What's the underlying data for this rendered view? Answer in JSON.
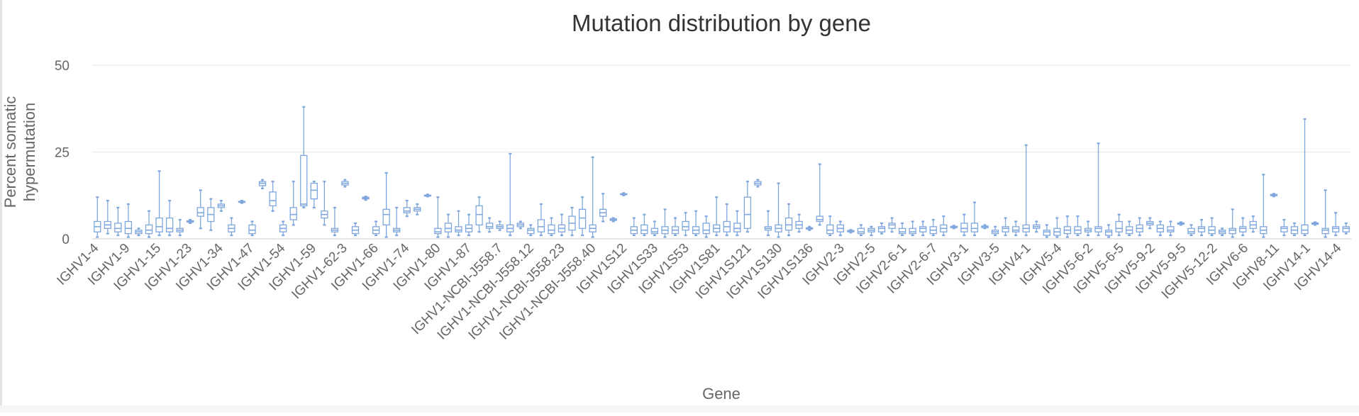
{
  "chart_data": {
    "type": "boxplot",
    "title": "Mutation distribution by gene",
    "xlabel": "Gene",
    "ylabel": "Percent somatic hypermutation",
    "ylabel_lines": [
      "Percent somatic",
      "hypermutation"
    ],
    "ylim": [
      0,
      50
    ],
    "yticks": [
      0,
      25,
      50
    ],
    "grid": true,
    "legend": "none",
    "box_color": "#7fa7de",
    "x_tick_labels_shown": [
      "IGHV1-4",
      "IGHV1-9",
      "IGHV1-15",
      "IGHV1-23",
      "IGHV1-34",
      "IGHV1-47",
      "IGHV1-54",
      "IGHV1-59",
      "IGHV1-62-3",
      "IGHV1-66",
      "IGHV1-74",
      "IGHV1-80",
      "IGHV1-87",
      "IGHV1-NCBI-J558.7",
      "IGHV1-NCBI-J558.12",
      "IGHV1-NCBI-J558.23",
      "IGHV1-NCBI-J558.40",
      "IGHV1S12",
      "IGHV1S33",
      "IGHV1S53",
      "IGHV1S81",
      "IGHV1S121",
      "IGHV1S130",
      "IGHV1S136",
      "IGHV2-3",
      "IGHV2-5",
      "IGHV2-6-1",
      "IGHV2-6-7",
      "IGHV3-1",
      "IGHV3-5",
      "IGHV4-1",
      "IGHV5-4",
      "IGHV5-6-2",
      "IGHV5-6-5",
      "IGHV5-9-2",
      "IGHV5-9-5",
      "IGHV5-12-2",
      "IGHV6-6",
      "IGHV8-11",
      "IGHV14-1",
      "IGHV14-4"
    ],
    "boxes": [
      {
        "min": 0.5,
        "q1": 2,
        "median": 3.5,
        "q3": 5,
        "max": 12
      },
      {
        "min": 1.5,
        "q1": 3,
        "median": 4,
        "q3": 5,
        "max": 11
      },
      {
        "min": 1,
        "q1": 2,
        "median": 3,
        "q3": 4.5,
        "max": 9
      },
      {
        "min": 0.5,
        "q1": 1.5,
        "median": 3,
        "q3": 5,
        "max": 10
      },
      {
        "min": 1,
        "q1": 1.5,
        "median": 2,
        "q3": 2.5,
        "max": 3
      },
      {
        "min": 0.5,
        "q1": 1.5,
        "median": 2.5,
        "q3": 4,
        "max": 8
      },
      {
        "min": 1,
        "q1": 2,
        "median": 3.5,
        "q3": 6,
        "max": 19.5
      },
      {
        "min": 1,
        "q1": 2,
        "median": 3,
        "q3": 6,
        "max": 11
      },
      {
        "min": 1,
        "q1": 2,
        "median": 2.5,
        "q3": 3,
        "max": 5.5
      },
      {
        "min": 4.5,
        "q1": 4.8,
        "median": 5,
        "q3": 5.2,
        "max": 5.5
      },
      {
        "min": 3,
        "q1": 6.5,
        "median": 7.5,
        "q3": 9,
        "max": 14
      },
      {
        "min": 2.5,
        "q1": 5,
        "median": 7,
        "q3": 9,
        "max": 11.5
      },
      {
        "min": 8,
        "q1": 9,
        "median": 9.5,
        "q3": 10,
        "max": 11
      },
      {
        "min": 1,
        "q1": 2,
        "median": 3,
        "q3": 4,
        "max": 6
      },
      {
        "min": 10.3,
        "q1": 10.5,
        "median": 10.7,
        "q3": 10.8,
        "max": 11
      },
      {
        "min": 1,
        "q1": 1.5,
        "median": 2.5,
        "q3": 4,
        "max": 5
      },
      {
        "min": 14.5,
        "q1": 15.3,
        "median": 16,
        "q3": 16.5,
        "max": 17
      },
      {
        "min": 8,
        "q1": 9.5,
        "median": 11,
        "q3": 13.5,
        "max": 16.5
      },
      {
        "min": 1,
        "q1": 2,
        "median": 3,
        "q3": 4,
        "max": 5
      },
      {
        "min": 4,
        "q1": 5.5,
        "median": 7,
        "q3": 9,
        "max": 16.5
      },
      {
        "min": 9,
        "q1": 9.5,
        "median": 10,
        "q3": 24,
        "max": 38
      },
      {
        "min": 9,
        "q1": 11.5,
        "median": 14,
        "q3": 16,
        "max": 16.5
      },
      {
        "min": 4,
        "q1": 6,
        "median": 7,
        "q3": 8,
        "max": 16.5
      },
      {
        "min": 1,
        "q1": 2,
        "median": 2.5,
        "q3": 3,
        "max": 9
      },
      {
        "min": 15,
        "q1": 15.5,
        "median": 16,
        "q3": 16.5,
        "max": 17
      },
      {
        "min": 1,
        "q1": 1.5,
        "median": 2.5,
        "q3": 3.5,
        "max": 4.5
      },
      {
        "min": 11.2,
        "q1": 11.5,
        "median": 11.8,
        "q3": 12,
        "max": 12.2
      },
      {
        "min": 1,
        "q1": 1.5,
        "median": 2.5,
        "q3": 3.5,
        "max": 5
      },
      {
        "min": 0.5,
        "q1": 4,
        "median": 7,
        "q3": 8.5,
        "max": 19
      },
      {
        "min": 1,
        "q1": 2,
        "median": 2.5,
        "q3": 3,
        "max": 9
      },
      {
        "min": 6.5,
        "q1": 7.5,
        "median": 8,
        "q3": 9,
        "max": 11
      },
      {
        "min": 7,
        "q1": 8,
        "median": 8.5,
        "q3": 9,
        "max": 10
      },
      {
        "min": 12.2,
        "q1": 12.4,
        "median": 12.5,
        "q3": 12.6,
        "max": 12.8
      },
      {
        "min": 0.5,
        "q1": 1.5,
        "median": 2,
        "q3": 3,
        "max": 12
      },
      {
        "min": 0.5,
        "q1": 2,
        "median": 3,
        "q3": 4.5,
        "max": 7
      },
      {
        "min": 1,
        "q1": 2,
        "median": 2.5,
        "q3": 3.5,
        "max": 8
      },
      {
        "min": 1,
        "q1": 2,
        "median": 3,
        "q3": 4,
        "max": 7
      },
      {
        "min": 2,
        "q1": 4,
        "median": 7,
        "q3": 9.5,
        "max": 12
      },
      {
        "min": 2,
        "q1": 3,
        "median": 3.5,
        "q3": 4.5,
        "max": 6
      },
      {
        "min": 2.5,
        "q1": 3,
        "median": 3.5,
        "q3": 4,
        "max": 5
      },
      {
        "min": 1,
        "q1": 2,
        "median": 3,
        "q3": 4,
        "max": 24.5
      },
      {
        "min": 3,
        "q1": 3.5,
        "median": 4,
        "q3": 4.5,
        "max": 5
      },
      {
        "min": 1,
        "q1": 1.5,
        "median": 2.5,
        "q3": 3,
        "max": 4
      },
      {
        "min": 1,
        "q1": 2,
        "median": 3.5,
        "q3": 5.5,
        "max": 10
      },
      {
        "min": 1,
        "q1": 1.5,
        "median": 2.5,
        "q3": 4,
        "max": 6
      },
      {
        "min": 1,
        "q1": 2,
        "median": 3,
        "q3": 4,
        "max": 7
      },
      {
        "min": 1,
        "q1": 2.5,
        "median": 4.5,
        "q3": 6.5,
        "max": 9
      },
      {
        "min": 1,
        "q1": 3,
        "median": 6,
        "q3": 8.5,
        "max": 12
      },
      {
        "min": 0.5,
        "q1": 2,
        "median": 3,
        "q3": 4,
        "max": 23.5
      },
      {
        "min": 5,
        "q1": 6.5,
        "median": 7.5,
        "q3": 8.5,
        "max": 13
      },
      {
        "min": 5,
        "q1": 5.3,
        "median": 5.5,
        "q3": 5.8,
        "max": 6
      },
      {
        "min": 12.5,
        "q1": 12.7,
        "median": 12.9,
        "q3": 13,
        "max": 13.2
      },
      {
        "min": 1,
        "q1": 1.5,
        "median": 2.5,
        "q3": 3.5,
        "max": 6
      },
      {
        "min": 1,
        "q1": 1.5,
        "median": 2.5,
        "q3": 4,
        "max": 7
      },
      {
        "min": 1,
        "q1": 1.5,
        "median": 2,
        "q3": 3,
        "max": 5
      },
      {
        "min": 0.5,
        "q1": 1.5,
        "median": 2.5,
        "q3": 3.5,
        "max": 8.5
      },
      {
        "min": 1,
        "q1": 1.5,
        "median": 2.5,
        "q3": 3.5,
        "max": 6
      },
      {
        "min": 1,
        "q1": 2.5,
        "median": 3.5,
        "q3": 5,
        "max": 7.5
      },
      {
        "min": 1,
        "q1": 1.5,
        "median": 2.5,
        "q3": 3.5,
        "max": 8
      },
      {
        "min": 0.5,
        "q1": 1.5,
        "median": 2.5,
        "q3": 4.5,
        "max": 6.5
      },
      {
        "min": 1,
        "q1": 2,
        "median": 3,
        "q3": 4,
        "max": 12
      },
      {
        "min": 1,
        "q1": 2,
        "median": 3.5,
        "q3": 5,
        "max": 10
      },
      {
        "min": 1,
        "q1": 2,
        "median": 3,
        "q3": 4.5,
        "max": 8
      },
      {
        "min": 2,
        "q1": 3,
        "median": 7,
        "q3": 12,
        "max": 16.5
      },
      {
        "min": 15,
        "q1": 15.5,
        "median": 16,
        "q3": 16.5,
        "max": 17
      },
      {
        "min": 1,
        "q1": 2.5,
        "median": 3,
        "q3": 3.5,
        "max": 8
      },
      {
        "min": 0.5,
        "q1": 2,
        "median": 3,
        "q3": 4,
        "max": 16
      },
      {
        "min": 1,
        "q1": 2.5,
        "median": 4,
        "q3": 6,
        "max": 10
      },
      {
        "min": 2,
        "q1": 3,
        "median": 4,
        "q3": 5,
        "max": 7
      },
      {
        "min": 2.5,
        "q1": 2.8,
        "median": 3,
        "q3": 3.2,
        "max": 3.5
      },
      {
        "min": 4,
        "q1": 5,
        "median": 5.5,
        "q3": 6.5,
        "max": 21.5
      },
      {
        "min": 1,
        "q1": 1.5,
        "median": 2.5,
        "q3": 4,
        "max": 6.5
      },
      {
        "min": 1,
        "q1": 2,
        "median": 3,
        "q3": 4,
        "max": 5
      },
      {
        "min": 1.8,
        "q1": 2,
        "median": 2.2,
        "q3": 2.4,
        "max": 2.6
      },
      {
        "min": 1,
        "q1": 1.5,
        "median": 2,
        "q3": 3,
        "max": 4
      },
      {
        "min": 1,
        "q1": 2,
        "median": 2.5,
        "q3": 3,
        "max": 3.5
      },
      {
        "min": 1.5,
        "q1": 2,
        "median": 3,
        "q3": 3.5,
        "max": 4.5
      },
      {
        "min": 2,
        "q1": 3,
        "median": 4,
        "q3": 4.5,
        "max": 6
      },
      {
        "min": 1,
        "q1": 1.5,
        "median": 2,
        "q3": 3,
        "max": 4.5
      },
      {
        "min": 1,
        "q1": 1.5,
        "median": 2,
        "q3": 3,
        "max": 5
      },
      {
        "min": 1,
        "q1": 2,
        "median": 3,
        "q3": 3.5,
        "max": 5
      },
      {
        "min": 1,
        "q1": 1.5,
        "median": 2.5,
        "q3": 3.5,
        "max": 5.5
      },
      {
        "min": 1,
        "q1": 2,
        "median": 3,
        "q3": 4,
        "max": 6.5
      },
      {
        "min": 3,
        "q1": 3.2,
        "median": 3.4,
        "q3": 3.6,
        "max": 3.8
      },
      {
        "min": 1,
        "q1": 2,
        "median": 3,
        "q3": 4.5,
        "max": 7
      },
      {
        "min": 1,
        "q1": 2,
        "median": 3,
        "q3": 4.5,
        "max": 10.5
      },
      {
        "min": 3,
        "q1": 3.2,
        "median": 3.5,
        "q3": 3.7,
        "max": 4
      },
      {
        "min": 1,
        "q1": 1.5,
        "median": 2,
        "q3": 2.5,
        "max": 3.5
      },
      {
        "min": 1,
        "q1": 2,
        "median": 3,
        "q3": 3.5,
        "max": 6
      },
      {
        "min": 1,
        "q1": 2,
        "median": 2.5,
        "q3": 3.5,
        "max": 5
      },
      {
        "min": 1,
        "q1": 2,
        "median": 3,
        "q3": 4,
        "max": 27
      },
      {
        "min": 2,
        "q1": 3,
        "median": 3.5,
        "q3": 4,
        "max": 5
      },
      {
        "min": 0.5,
        "q1": 1,
        "median": 2,
        "q3": 2.5,
        "max": 4
      },
      {
        "min": 0.5,
        "q1": 1,
        "median": 2,
        "q3": 3,
        "max": 6
      },
      {
        "min": 0.5,
        "q1": 1.5,
        "median": 2.5,
        "q3": 3.5,
        "max": 6.5
      },
      {
        "min": 1,
        "q1": 1.5,
        "median": 2.5,
        "q3": 3.5,
        "max": 6.5
      },
      {
        "min": 1,
        "q1": 2,
        "median": 2.5,
        "q3": 3,
        "max": 5
      },
      {
        "min": 1,
        "q1": 2,
        "median": 3,
        "q3": 3.5,
        "max": 27.5
      },
      {
        "min": 0.5,
        "q1": 1,
        "median": 2,
        "q3": 2.5,
        "max": 4
      },
      {
        "min": 1,
        "q1": 2,
        "median": 3,
        "q3": 5,
        "max": 7
      },
      {
        "min": 1,
        "q1": 1.5,
        "median": 2.5,
        "q3": 3.5,
        "max": 5
      },
      {
        "min": 1,
        "q1": 2,
        "median": 3,
        "q3": 4,
        "max": 6
      },
      {
        "min": 3,
        "q1": 4,
        "median": 4.5,
        "q3": 5,
        "max": 6
      },
      {
        "min": 1,
        "q1": 2,
        "median": 3,
        "q3": 4,
        "max": 5
      },
      {
        "min": 1,
        "q1": 2,
        "median": 2.5,
        "q3": 3.5,
        "max": 5
      },
      {
        "min": 4,
        "q1": 4.2,
        "median": 4.4,
        "q3": 4.6,
        "max": 4.8
      },
      {
        "min": 1,
        "q1": 1.5,
        "median": 2,
        "q3": 3,
        "max": 4
      },
      {
        "min": 1,
        "q1": 2,
        "median": 3,
        "q3": 3.5,
        "max": 5.5
      },
      {
        "min": 1,
        "q1": 1.5,
        "median": 2.5,
        "q3": 3.5,
        "max": 6
      },
      {
        "min": 1,
        "q1": 1.5,
        "median": 2,
        "q3": 2.5,
        "max": 3
      },
      {
        "min": 0.5,
        "q1": 1.5,
        "median": 2.5,
        "q3": 3,
        "max": 8.5
      },
      {
        "min": 1,
        "q1": 2,
        "median": 3,
        "q3": 3.5,
        "max": 6
      },
      {
        "min": 2,
        "q1": 3,
        "median": 4,
        "q3": 5,
        "max": 6.5
      },
      {
        "min": 0.5,
        "q1": 1.5,
        "median": 2.5,
        "q3": 3.5,
        "max": 18.5
      },
      {
        "min": 12.2,
        "q1": 12.4,
        "median": 12.6,
        "q3": 12.8,
        "max": 13
      },
      {
        "min": 1,
        "q1": 2,
        "median": 3,
        "q3": 3.5,
        "max": 5.5
      },
      {
        "min": 1,
        "q1": 1.5,
        "median": 2.5,
        "q3": 3.5,
        "max": 4.5
      },
      {
        "min": 1,
        "q1": 1.5,
        "median": 2.5,
        "q3": 4,
        "max": 34.5
      },
      {
        "min": 4,
        "q1": 4.2,
        "median": 4.4,
        "q3": 4.6,
        "max": 4.8
      },
      {
        "min": 0.5,
        "q1": 1.5,
        "median": 2.5,
        "q3": 3,
        "max": 14
      },
      {
        "min": 1,
        "q1": 2,
        "median": 3,
        "q3": 3.5,
        "max": 7.5
      },
      {
        "min": 1.5,
        "q1": 2,
        "median": 3,
        "q3": 3.5,
        "max": 4.5
      }
    ]
  }
}
